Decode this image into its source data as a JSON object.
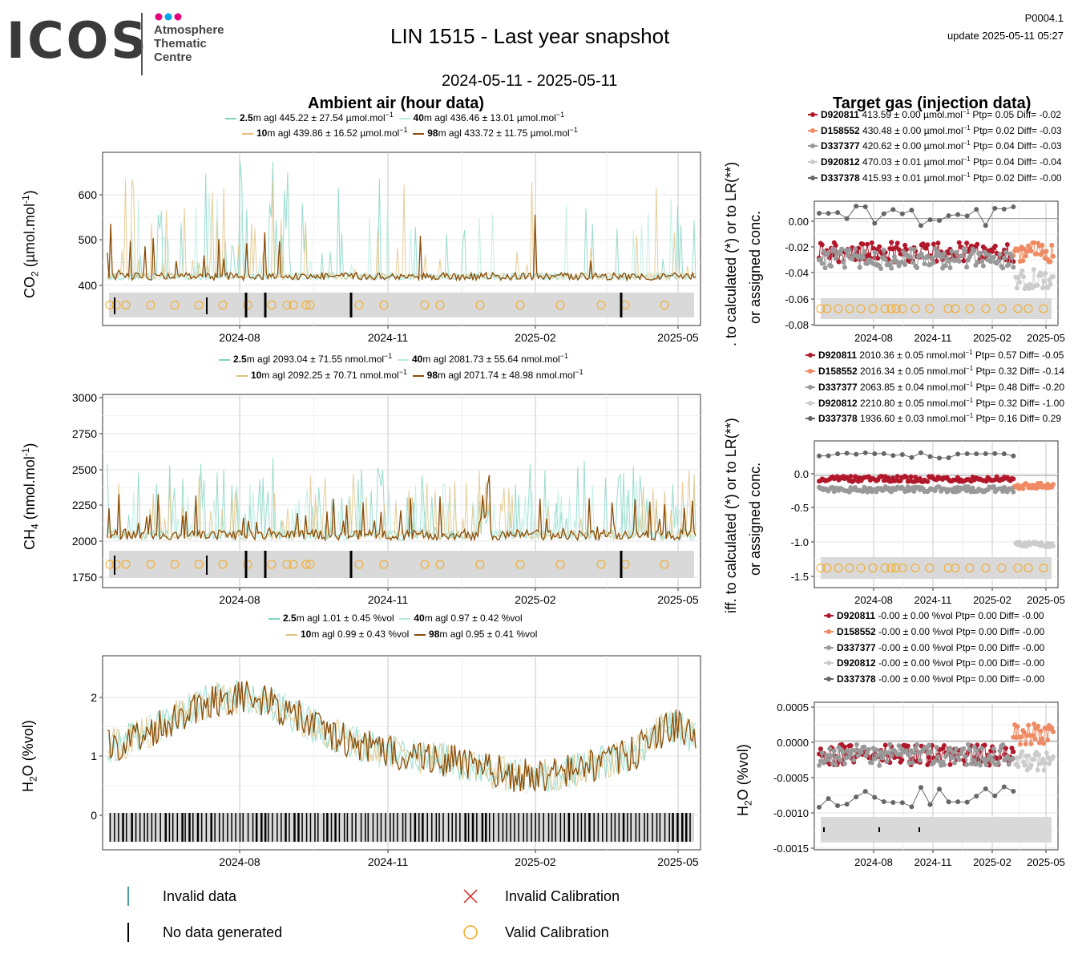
{
  "header": {
    "logo_word": "ICOS",
    "logo_lines": [
      "Atmosphere",
      "Thematic",
      "Centre"
    ],
    "title": "LIN 1515 - Last year snapshot",
    "code": "P0004.1",
    "update": "update  2025-05-11 05:27",
    "date_range": "2024-05-11 - 2025-05-11"
  },
  "sections": {
    "ambient": "Ambient air (hour data)",
    "target": "Target gas (injection data)"
  },
  "colors": {
    "m2_5": "#7fd3c2",
    "m10": "#e0c080",
    "m40": "#b7ebe0",
    "m98": "#8b4d07",
    "D920811": "#b2182b",
    "D158552": "#ef8a62",
    "D337377": "#999999",
    "D920812": "#cccccc",
    "D337378": "#666666",
    "calib": "#f4a81d",
    "flag_band": "#d9d9d9"
  },
  "x_ticks": [
    "2024-08",
    "2024-11",
    "2025-02",
    "2025-05"
  ],
  "chart_data": [
    {
      "type": "line",
      "id": "co2",
      "ylabel": "CO2 (µmol.mol-1)",
      "y_ticks": [
        "600",
        "500",
        "400"
      ],
      "ylim": [
        320,
        690
      ],
      "legend": [
        {
          "height": "2.5",
          "text": "m agl 445.22 ± 27.54 µmol.mol",
          "sup": "−1"
        },
        {
          "height": "40",
          "text": "m agl 436.46 ± 13.01 µmol.mol",
          "sup": "−1"
        },
        {
          "height": "10",
          "text": "m agl 439.86 ± 16.52 µmol.mol",
          "sup": "−1"
        },
        {
          "height": "98",
          "text": "m agl 433.72 ± 11.75 µmol.mol",
          "sup": "−1"
        }
      ]
    },
    {
      "type": "line",
      "id": "ch4",
      "ylabel": "CH4 (nmol.mol-1)",
      "y_ticks": [
        "3000",
        "2750",
        "2500",
        "2250",
        "2000",
        "1750"
      ],
      "ylim": [
        1700,
        3020
      ],
      "legend": [
        {
          "height": "2.5",
          "text": "m agl 2093.04 ± 71.55 nmol.mol",
          "sup": "−1"
        },
        {
          "height": "40",
          "text": "m agl 2081.73 ± 55.64 nmol.mol",
          "sup": "−1"
        },
        {
          "height": "10",
          "text": "m agl 2092.25 ± 70.71 nmol.mol",
          "sup": "−1"
        },
        {
          "height": "98",
          "text": "m agl 2071.74 ± 48.98 nmol.mol",
          "sup": "−1"
        }
      ]
    },
    {
      "type": "line",
      "id": "h2o",
      "ylabel": "H2O (%vol)",
      "y_ticks": [
        "2",
        "1",
        "0"
      ],
      "ylim": [
        -0.6,
        2.7
      ],
      "legend": [
        {
          "height": "2.5",
          "text": "m agl 1.01 ± 0.45 %vol",
          "sup": ""
        },
        {
          "height": "40",
          "text": "m agl 0.97 ± 0.42 %vol",
          "sup": ""
        },
        {
          "height": "10",
          "text": "m agl 0.99 ± 0.43 %vol",
          "sup": ""
        },
        {
          "height": "98",
          "text": "m agl 0.95 ± 0.41 %vol",
          "sup": ""
        }
      ]
    },
    {
      "type": "scatter",
      "id": "tg_co2",
      "ylabel_1": ". to calculated (*) or to LR(**)",
      "ylabel_2": "or assigned conc.",
      "y_ticks": [
        "0.00",
        "-0.02",
        "-0.04",
        "-0.06",
        "-0.08"
      ],
      "ylim": [
        -0.08,
        0.013
      ],
      "legend": [
        {
          "id": "D920811",
          "text": "413.59 ± 0.00 µmol.mol",
          "sup": "−1",
          "tail": "Ptp= 0.05 Diff= -0.02"
        },
        {
          "id": "D158552",
          "text": "430.48 ± 0.00 µmol.mol",
          "sup": "−1",
          "tail": "Ptp= 0.02 Diff= -0.03"
        },
        {
          "id": "D337377",
          "text": "420.62 ± 0.00 µmol.mol",
          "sup": "−1",
          "tail": "Ptp= 0.04 Diff= -0.03"
        },
        {
          "id": "D920812",
          "text": "470.03 ± 0.01 µmol.mol",
          "sup": "−1",
          "tail": "Ptp= 0.04 Diff= -0.04"
        },
        {
          "id": "D337378",
          "text": "415.93 ± 0.01 µmol.mol",
          "sup": "−1",
          "tail": "Ptp= 0.02 Diff= -0.00"
        }
      ]
    },
    {
      "type": "scatter",
      "id": "tg_ch4",
      "ylabel_1": "iff. to calculated (*) or to LR(**)",
      "ylabel_2": "or assigned conc.",
      "y_ticks": [
        "0.0",
        "-0.5",
        "-1.0",
        "-1.5"
      ],
      "ylim": [
        -1.62,
        0.5
      ],
      "legend": [
        {
          "id": "D920811",
          "text": "2010.36 ± 0.05 nmol.mol",
          "sup": "−1",
          "tail": "Ptp= 0.57 Diff= -0.05"
        },
        {
          "id": "D158552",
          "text": "2016.34 ± 0.05 nmol.mol",
          "sup": "−1",
          "tail": "Ptp= 0.32 Diff= -0.14"
        },
        {
          "id": "D337377",
          "text": "2063.85 ± 0.04 nmol.mol",
          "sup": "−1",
          "tail": "Ptp= 0.48 Diff= -0.20"
        },
        {
          "id": "D920812",
          "text": "2210.80 ± 0.05 nmol.mol",
          "sup": "−1",
          "tail": "Ptp= 0.32 Diff= -1.00"
        },
        {
          "id": "D337378",
          "text": "1936.60 ± 0.03 nmol.mol",
          "sup": "−1",
          "tail": "Ptp= 0.16 Diff= 0.29"
        }
      ]
    },
    {
      "type": "scatter",
      "id": "tg_h2o",
      "ylabel": "H2O (%vol)",
      "y_ticks": [
        "0.0005",
        "0.0000",
        "-0.0005",
        "-0.0010",
        "-0.0015"
      ],
      "ylim": [
        -0.00155,
        0.00055
      ],
      "legend": [
        {
          "id": "D920811",
          "text": "-0.00 ± 0.00 %vol",
          "sup": "",
          "tail": "Ptp= 0.00 Diff= -0.00"
        },
        {
          "id": "D158552",
          "text": "-0.00 ± 0.00 %vol",
          "sup": "",
          "tail": "Ptp= 0.00 Diff= -0.00"
        },
        {
          "id": "D337377",
          "text": "-0.00 ± 0.00 %vol",
          "sup": "",
          "tail": "Ptp= 0.00 Diff= -0.00"
        },
        {
          "id": "D920812",
          "text": "-0.00 ± 0.00 %vol",
          "sup": "",
          "tail": "Ptp= 0.00 Diff= -0.00"
        },
        {
          "id": "D337378",
          "text": "-0.00 ± 0.00 %vol",
          "sup": "",
          "tail": "Ptp= 0.00 Diff= -0.00"
        }
      ]
    }
  ],
  "bottom_legend": {
    "invalid_data": "Invalid data",
    "no_data": "No data generated",
    "invalid_calibration": "Invalid Calibration",
    "valid_calibration": "Valid Calibration"
  }
}
